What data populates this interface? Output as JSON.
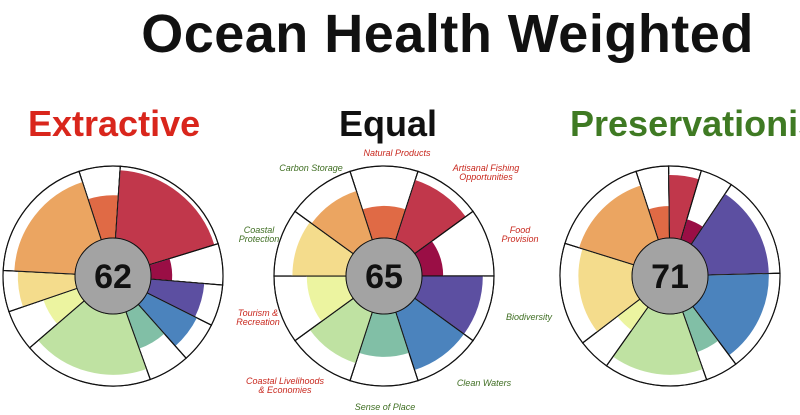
{
  "title": "Ocean Health Weighted",
  "colors": {
    "extractive": "#d9261c",
    "equal": "#111111",
    "preservationist": "#3f7a23",
    "label_red": "#c8281e",
    "label_green": "#3f6e22",
    "center": "#a3a3a3",
    "outline": "#111111"
  },
  "goals": [
    {
      "key": "NP",
      "name": "Natural Products",
      "color": "#e06a45"
    },
    {
      "key": "AO",
      "name": "Artisanal Fishing Opportunities",
      "color": "#c1374b"
    },
    {
      "key": "FP",
      "name": "Food Provision",
      "color": "#9a0e45"
    },
    {
      "key": "BD",
      "name": "Biodiversity",
      "color": "#5c4fa1"
    },
    {
      "key": "CW",
      "name": "Clean Waters",
      "color": "#4b83bd"
    },
    {
      "key": "SP",
      "name": "Sense of Place",
      "color": "#81bfa6"
    },
    {
      "key": "LE",
      "name": "Coastal Livelihoods & Economies",
      "color": "#bfe2a2"
    },
    {
      "key": "TR",
      "name": "Tourism & Recreation",
      "color": "#ecf4a0"
    },
    {
      "key": "CP",
      "name": "Coastal Protection",
      "color": "#f4dc8c"
    },
    {
      "key": "CS",
      "name": "Carbon Storage",
      "color": "#eba561"
    }
  ],
  "labels": [
    {
      "key": "NP",
      "lines": [
        "Natural Products"
      ],
      "color": "red"
    },
    {
      "key": "AO",
      "lines": [
        "Artisanal Fishing",
        "Opportunities"
      ],
      "color": "red"
    },
    {
      "key": "FP",
      "lines": [
        "Food",
        "Provision"
      ],
      "color": "red"
    },
    {
      "key": "BD",
      "lines": [
        "Biodiversity"
      ],
      "color": "green"
    },
    {
      "key": "CW",
      "lines": [
        "Clean Waters"
      ],
      "color": "green"
    },
    {
      "key": "SP",
      "lines": [
        "Sense of Place"
      ],
      "color": "green"
    },
    {
      "key": "LE",
      "lines": [
        "Coastal Livelihoods",
        "& Economies"
      ],
      "color": "red"
    },
    {
      "key": "TR",
      "lines": [
        "Tourism &",
        "Recreation"
      ],
      "color": "red"
    },
    {
      "key": "CP",
      "lines": [
        "Coastal",
        "Protection"
      ],
      "color": "green"
    },
    {
      "key": "CS",
      "lines": [
        "Carbon Storage"
      ],
      "color": "green"
    }
  ],
  "flowers": [
    {
      "name": "Extractive",
      "title_color": "extractive",
      "score": "62",
      "weights": [
        0.6,
        1.9,
        0.6,
        0.6,
        0.6,
        0.6,
        1.9,
        0.6,
        0.6,
        1.9
      ],
      "scores": [
        0.6,
        0.95,
        0.3,
        0.75,
        0.78,
        0.55,
        0.85,
        0.5,
        0.8,
        0.85
      ]
    },
    {
      "name": "Equal",
      "title_color": "equal",
      "score": "65",
      "weights": [
        1,
        1,
        1,
        1,
        1,
        1,
        1,
        1,
        1,
        1
      ],
      "scores": [
        0.45,
        0.88,
        0.3,
        0.85,
        0.85,
        0.6,
        0.75,
        0.55,
        0.75,
        0.72
      ]
    },
    {
      "name": "Preservationist",
      "title_color": "preservationist",
      "score": "71",
      "weights": [
        0.6,
        0.6,
        0.6,
        1.9,
        1.9,
        0.6,
        1.9,
        0.6,
        1.9,
        1.9
      ],
      "scores": [
        0.45,
        0.88,
        0.3,
        0.85,
        0.85,
        0.6,
        0.85,
        0.4,
        0.75,
        0.8
      ]
    }
  ]
}
